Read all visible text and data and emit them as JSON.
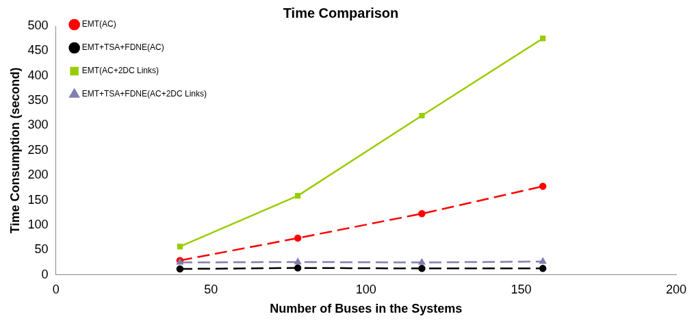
{
  "chart_data": {
    "type": "line",
    "title": "Time Comparison",
    "xlabel": "Number of Buses in the Systems",
    "ylabel": "Time Consumption (second)",
    "x": [
      40,
      78,
      118,
      157
    ],
    "series": [
      {
        "name": "EMT(AC)",
        "color": "#ff0000",
        "values": [
          29,
          74,
          123,
          178
        ],
        "marker": "circle",
        "line_style": "dashed"
      },
      {
        "name": "EMT+TSA+FDNE(AC)",
        "color": "#000000",
        "values": [
          12,
          14,
          13,
          13
        ],
        "marker": "circle",
        "line_style": "dashed"
      },
      {
        "name": "EMT(AC+2DC Links)",
        "color": "#99cc00",
        "values": [
          57,
          159,
          320,
          475
        ],
        "marker": "square",
        "line_style": "solid"
      },
      {
        "name": "EMT+TSA+FDNE(AC+2DC Links)",
        "color": "#7f7fb0",
        "values": [
          25,
          26,
          25,
          27
        ],
        "marker": "triangle",
        "line_style": "dashed"
      }
    ],
    "xlim": [
      0,
      200
    ],
    "xticks": [
      0,
      50,
      100,
      150,
      200
    ],
    "ylim": [
      0,
      500
    ],
    "yticks": [
      0,
      50,
      100,
      150,
      200,
      250,
      300,
      350,
      400,
      450,
      500
    ],
    "grid": false,
    "legend": "top left"
  }
}
